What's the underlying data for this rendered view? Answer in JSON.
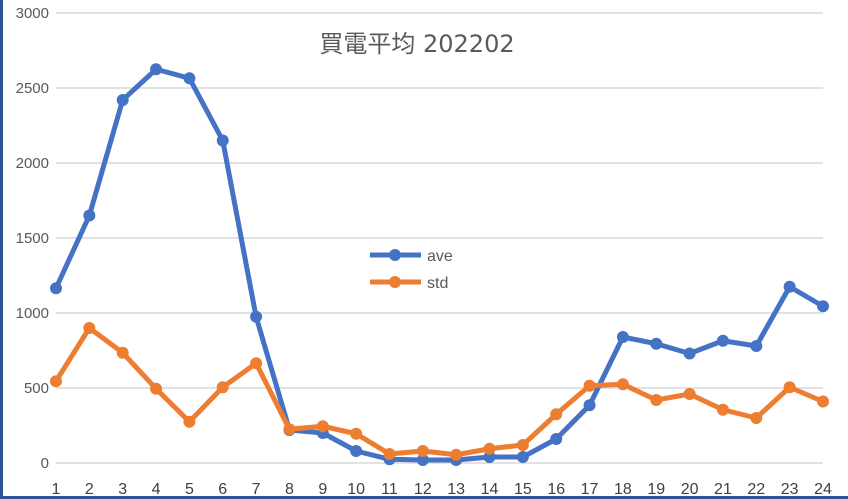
{
  "chart_data": {
    "type": "line",
    "title": "買電平均 202202",
    "xlabel": "",
    "ylabel": "",
    "categories": [
      "1",
      "2",
      "3",
      "4",
      "5",
      "6",
      "7",
      "8",
      "9",
      "10",
      "11",
      "12",
      "13",
      "14",
      "15",
      "16",
      "17",
      "18",
      "19",
      "20",
      "21",
      "22",
      "23",
      "24"
    ],
    "series": [
      {
        "name": "ave",
        "color": "#4472c4",
        "values": [
          1165,
          1650,
          2420,
          2625,
          2565,
          2150,
          975,
          220,
          200,
          80,
          25,
          20,
          20,
          40,
          40,
          160,
          385,
          840,
          795,
          730,
          815,
          780,
          1175,
          1045
        ]
      },
      {
        "name": "std",
        "color": "#ed7d31",
        "values": [
          545,
          900,
          735,
          495,
          275,
          505,
          665,
          225,
          245,
          195,
          60,
          80,
          55,
          95,
          120,
          325,
          515,
          525,
          420,
          460,
          355,
          300,
          505,
          410
        ]
      }
    ],
    "ylim": [
      0,
      3000
    ],
    "yticks": [
      "0",
      "500",
      "1000",
      "1500",
      "2000",
      "2500",
      "3000"
    ],
    "grid": true,
    "legend_position": "inside-center",
    "gridline_color": "#d9d9d9"
  }
}
